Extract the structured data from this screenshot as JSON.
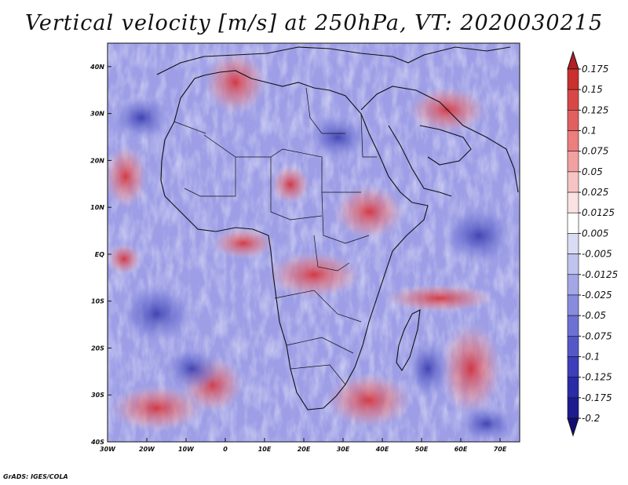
{
  "title": "Vertical velocity [m/s] at 250hPa, VT: 2020030215",
  "footer": "GrADS: IGES/COLA",
  "map": {
    "lat_labels": [
      "40N",
      "30N",
      "20N",
      "10N",
      "EQ",
      "10S",
      "20S",
      "30S",
      "40S"
    ],
    "lat_values": [
      40,
      30,
      20,
      10,
      0,
      -10,
      -20,
      -30,
      -40
    ],
    "lon_labels": [
      "30W",
      "20W",
      "10W",
      "0",
      "10E",
      "20E",
      "30E",
      "40E",
      "50E",
      "60E",
      "70E"
    ],
    "lon_values": [
      -30,
      -20,
      -10,
      0,
      10,
      20,
      30,
      40,
      50,
      60,
      70
    ],
    "lon_range": [
      -30,
      75
    ],
    "lat_range": [
      -40,
      45
    ]
  },
  "colorbar": {
    "labels": [
      "0.175",
      "0.15",
      "0.125",
      "0.1",
      "0.075",
      "0.05",
      "0.025",
      "0.0125",
      "0.005",
      "-0.005",
      "-0.0125",
      "-0.025",
      "-0.05",
      "-0.075",
      "-0.1",
      "-0.125",
      "-0.175",
      "-0.2"
    ],
    "colors": [
      "#b21f24",
      "#c9302f",
      "#d84747",
      "#e25f5f",
      "#ec7e7e",
      "#f2a0a0",
      "#f7c4c4",
      "#fbe2e2",
      "#ffffff",
      "#dadcf5",
      "#c0c3ee",
      "#a3a7e6",
      "#878cde",
      "#6d71d3",
      "#5458c7",
      "#3c3fb9",
      "#2a2ba6",
      "#1c1c8e",
      "#110f73"
    ]
  }
}
